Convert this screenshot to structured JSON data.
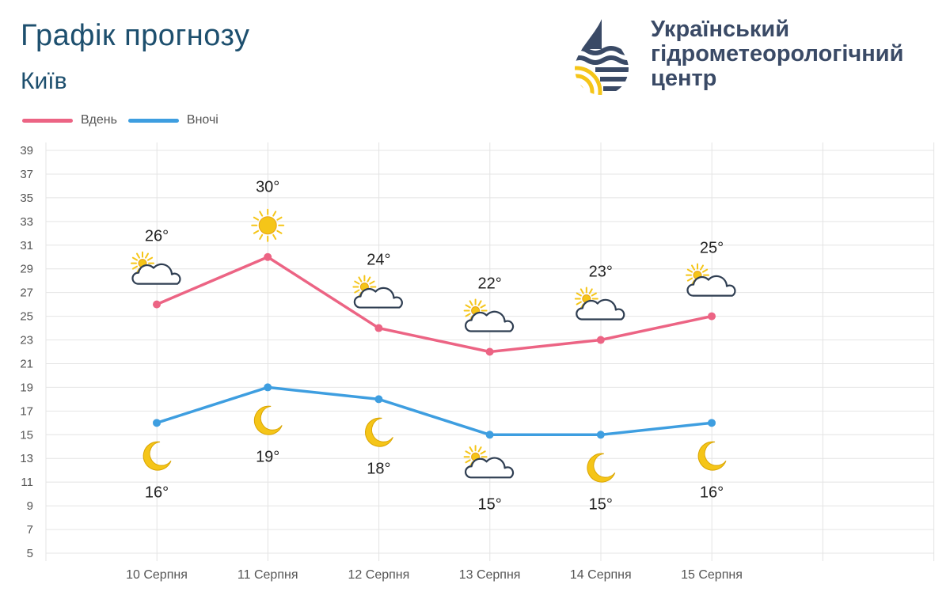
{
  "header": {
    "title": "Графік прогнозу",
    "city": "Київ"
  },
  "logo": {
    "line1": "Український",
    "line2": "гідрометеорологічний",
    "line3": "центр",
    "colors": {
      "navy": "#3a4a66",
      "yellow": "#f5c518"
    }
  },
  "legend": {
    "day_label": "Вдень",
    "night_label": "Вночі"
  },
  "colors": {
    "day": "#ec6484",
    "night": "#3e9ee0",
    "grid": "#e4e4e4",
    "title": "#1d4f6e"
  },
  "chart_data": {
    "type": "line",
    "categories": [
      "10 Серпня",
      "11 Серпня",
      "12 Серпня",
      "13 Серпня",
      "14 Серпня",
      "15 Серпня"
    ],
    "series": [
      {
        "name": "Вдень",
        "values": [
          26,
          30,
          24,
          22,
          23,
          25
        ],
        "labels": [
          "26°",
          "30°",
          "24°",
          "22°",
          "23°",
          "25°"
        ],
        "icons": [
          "partly-cloudy-icon",
          "sun-icon",
          "partly-cloudy-icon",
          "partly-cloudy-icon",
          "partly-cloudy-icon",
          "partly-cloudy-icon"
        ]
      },
      {
        "name": "Вночі",
        "values": [
          16,
          19,
          18,
          15,
          15,
          16
        ],
        "labels": [
          "16°",
          "19°",
          "18°",
          "15°",
          "15°",
          "16°"
        ],
        "icons": [
          "moon-icon",
          "moon-icon",
          "moon-icon",
          "partly-cloudy-icon",
          "moon-icon",
          "moon-icon"
        ]
      }
    ],
    "ylim": [
      5,
      39
    ],
    "yticks": [
      "5",
      "7",
      "9",
      "11",
      "13",
      "15",
      "17",
      "19",
      "21",
      "23",
      "25",
      "27",
      "29",
      "31",
      "33",
      "35",
      "37",
      "39"
    ],
    "grid": true,
    "legend_position": "top-left"
  }
}
